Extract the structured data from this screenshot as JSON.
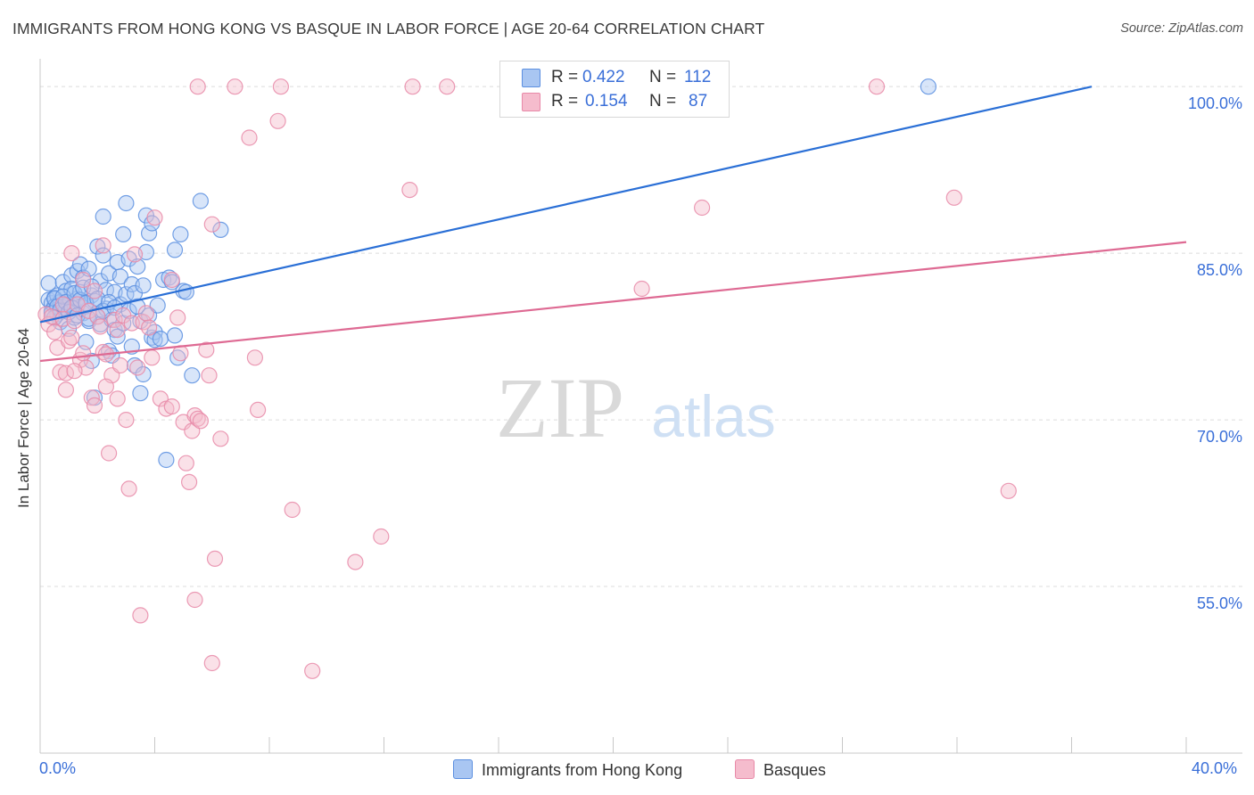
{
  "chart_data": {
    "type": "scatter",
    "title": "IMMIGRANTS FROM HONG KONG VS BASQUE IN LABOR FORCE | AGE 20-64 CORRELATION CHART",
    "source": "Source: ZipAtlas.com",
    "xlabel": "",
    "ylabel": "In Labor Force | Age 20-64",
    "xlim": [
      0,
      40
    ],
    "ylim": [
      40,
      102.5
    ],
    "x_tick_labels": {
      "left": "0.0%",
      "right": "40.0%"
    },
    "y_ticks": [
      {
        "value": 100,
        "label": "100.0%"
      },
      {
        "value": 85,
        "label": "85.0%"
      },
      {
        "value": 70,
        "label": "70.0%"
      },
      {
        "value": 55,
        "label": "55.0%"
      }
    ],
    "watermark": {
      "zip": "ZIP",
      "atlas": "atlas"
    },
    "legend": {
      "rows": [
        {
          "r_label": "R =",
          "r_value": "0.422",
          "n_label": "N =",
          "n_value": "112"
        },
        {
          "r_label": "R =",
          "r_value": "0.154",
          "n_label": "N =",
          "n_value": "87"
        }
      ]
    },
    "series": [
      {
        "name": "Immigrants from Hong Kong",
        "color": "#5b8fe0",
        "fill": "#a9c6f2",
        "trend": {
          "x": [
            0,
            36.7
          ],
          "y": [
            78.8,
            100.0
          ],
          "color": "#2a6fd6"
        },
        "points": [
          [
            0.3,
            82.3
          ],
          [
            0.3,
            80.8
          ],
          [
            0.4,
            80.5
          ],
          [
            0.4,
            79.8
          ],
          [
            0.5,
            81.0
          ],
          [
            0.5,
            80.2
          ],
          [
            0.6,
            79.5
          ],
          [
            0.6,
            81.2
          ],
          [
            0.7,
            80.6
          ],
          [
            0.7,
            78.8
          ],
          [
            0.8,
            80.1
          ],
          [
            0.8,
            82.4
          ],
          [
            0.9,
            79.9
          ],
          [
            0.9,
            81.6
          ],
          [
            1.0,
            80.4
          ],
          [
            1.0,
            78.2
          ],
          [
            1.1,
            83.0
          ],
          [
            1.1,
            81.8
          ],
          [
            1.2,
            80.0
          ],
          [
            1.2,
            79.2
          ],
          [
            1.3,
            83.4
          ],
          [
            1.3,
            80.9
          ],
          [
            1.4,
            84.0
          ],
          [
            1.4,
            81.5
          ],
          [
            1.5,
            79.6
          ],
          [
            1.5,
            82.8
          ],
          [
            1.6,
            80.3
          ],
          [
            1.6,
            77.0
          ],
          [
            1.7,
            83.6
          ],
          [
            1.7,
            78.9
          ],
          [
            1.8,
            81.2
          ],
          [
            1.8,
            75.3
          ],
          [
            1.9,
            80.7
          ],
          [
            1.9,
            72.0
          ],
          [
            2.0,
            79.3
          ],
          [
            2.0,
            85.6
          ],
          [
            2.1,
            82.5
          ],
          [
            2.1,
            78.6
          ],
          [
            2.2,
            84.8
          ],
          [
            2.2,
            88.3
          ],
          [
            2.3,
            81.7
          ],
          [
            2.3,
            80.0
          ],
          [
            2.4,
            83.2
          ],
          [
            2.4,
            76.2
          ],
          [
            2.5,
            79.0
          ],
          [
            2.5,
            75.8
          ],
          [
            2.6,
            81.5
          ],
          [
            2.6,
            78.1
          ],
          [
            2.7,
            84.2
          ],
          [
            2.7,
            77.5
          ],
          [
            2.8,
            80.4
          ],
          [
            2.8,
            82.9
          ],
          [
            2.9,
            78.7
          ],
          [
            2.9,
            86.7
          ],
          [
            3.0,
            81.3
          ],
          [
            3.0,
            89.5
          ],
          [
            3.1,
            84.5
          ],
          [
            3.1,
            79.8
          ],
          [
            3.2,
            82.2
          ],
          [
            3.2,
            76.6
          ],
          [
            3.3,
            81.4
          ],
          [
            3.3,
            74.9
          ],
          [
            3.4,
            80.2
          ],
          [
            3.4,
            83.8
          ],
          [
            3.5,
            78.9
          ],
          [
            3.5,
            72.4
          ],
          [
            3.6,
            82.1
          ],
          [
            3.6,
            74.1
          ],
          [
            3.7,
            85.1
          ],
          [
            3.7,
            88.4
          ],
          [
            3.8,
            79.4
          ],
          [
            3.8,
            86.8
          ],
          [
            3.9,
            87.7
          ],
          [
            3.9,
            77.4
          ],
          [
            4.0,
            77.9
          ],
          [
            4.0,
            77.2
          ],
          [
            4.1,
            80.3
          ],
          [
            4.2,
            77.3
          ],
          [
            4.3,
            82.6
          ],
          [
            4.4,
            66.4
          ],
          [
            4.5,
            82.8
          ],
          [
            4.6,
            82.4
          ],
          [
            4.7,
            85.3
          ],
          [
            4.7,
            77.6
          ],
          [
            4.8,
            75.6
          ],
          [
            4.9,
            86.7
          ],
          [
            5.0,
            81.6
          ],
          [
            5.1,
            81.5
          ],
          [
            5.3,
            74.0
          ],
          [
            5.6,
            89.7
          ],
          [
            6.3,
            87.1
          ],
          [
            0.4,
            79.6
          ],
          [
            0.5,
            80.9
          ],
          [
            0.6,
            80.2
          ],
          [
            0.7,
            79.9
          ],
          [
            0.8,
            81.1
          ],
          [
            0.9,
            80.6
          ],
          [
            1.0,
            79.7
          ],
          [
            1.1,
            80.1
          ],
          [
            1.2,
            81.4
          ],
          [
            1.3,
            79.4
          ],
          [
            1.4,
            80.8
          ],
          [
            1.5,
            81.9
          ],
          [
            1.6,
            80.5
          ],
          [
            1.7,
            79.1
          ],
          [
            1.8,
            82.0
          ],
          [
            2.0,
            80.9
          ],
          [
            2.2,
            79.8
          ],
          [
            2.4,
            80.6
          ],
          [
            2.6,
            80.1
          ],
          [
            31.0,
            100.0
          ],
          [
            0.5,
            79.2
          ]
        ]
      },
      {
        "name": "Basques",
        "color": "#e889a8",
        "fill": "#f5bccd",
        "trend": {
          "x": [
            0,
            40
          ],
          "y": [
            75.3,
            86.0
          ],
          "color": "#de6a93"
        },
        "points": [
          [
            0.2,
            79.5
          ],
          [
            0.3,
            78.6
          ],
          [
            0.4,
            79.3
          ],
          [
            0.5,
            77.9
          ],
          [
            0.6,
            76.5
          ],
          [
            0.7,
            74.3
          ],
          [
            0.8,
            79.1
          ],
          [
            0.9,
            74.2
          ],
          [
            1.0,
            77.1
          ],
          [
            1.1,
            77.4
          ],
          [
            1.2,
            78.9
          ],
          [
            1.3,
            80.4
          ],
          [
            1.4,
            75.4
          ],
          [
            1.5,
            76.0
          ],
          [
            1.6,
            74.7
          ],
          [
            1.7,
            79.8
          ],
          [
            1.8,
            72.0
          ],
          [
            1.9,
            81.6
          ],
          [
            2.0,
            79.3
          ],
          [
            2.1,
            78.4
          ],
          [
            2.2,
            76.1
          ],
          [
            2.3,
            75.9
          ],
          [
            2.4,
            67.0
          ],
          [
            2.5,
            74.0
          ],
          [
            2.6,
            79.0
          ],
          [
            2.7,
            71.9
          ],
          [
            2.8,
            74.9
          ],
          [
            2.9,
            79.4
          ],
          [
            3.0,
            70.0
          ],
          [
            3.1,
            63.8
          ],
          [
            3.2,
            78.7
          ],
          [
            3.3,
            84.9
          ],
          [
            3.4,
            74.7
          ],
          [
            3.5,
            52.4
          ],
          [
            3.6,
            78.8
          ],
          [
            3.7,
            79.6
          ],
          [
            3.8,
            78.3
          ],
          [
            4.0,
            88.2
          ],
          [
            4.2,
            71.9
          ],
          [
            4.4,
            71.0
          ],
          [
            4.6,
            71.2
          ],
          [
            4.8,
            79.2
          ],
          [
            4.9,
            76.0
          ],
          [
            5.0,
            69.8
          ],
          [
            5.1,
            66.1
          ],
          [
            5.2,
            64.4
          ],
          [
            5.3,
            69.0
          ],
          [
            5.4,
            70.4
          ],
          [
            5.5,
            70.1
          ],
          [
            5.6,
            69.9
          ],
          [
            5.8,
            76.3
          ],
          [
            5.9,
            74.0
          ],
          [
            6.0,
            87.6
          ],
          [
            6.1,
            57.5
          ],
          [
            6.3,
            68.3
          ],
          [
            7.3,
            95.4
          ],
          [
            7.5,
            75.6
          ],
          [
            7.6,
            70.9
          ],
          [
            8.3,
            96.9
          ],
          [
            8.8,
            61.9
          ],
          [
            9.5,
            47.4
          ],
          [
            11.0,
            57.2
          ],
          [
            11.9,
            59.5
          ],
          [
            12.9,
            90.7
          ],
          [
            21.0,
            81.8
          ],
          [
            23.1,
            89.1
          ],
          [
            31.9,
            90.0
          ],
          [
            33.8,
            63.6
          ],
          [
            5.5,
            100.0
          ],
          [
            6.8,
            100.0
          ],
          [
            8.4,
            100.0
          ],
          [
            13.0,
            100.0
          ],
          [
            14.2,
            100.0
          ],
          [
            29.2,
            100.0
          ],
          [
            6.0,
            48.1
          ],
          [
            5.4,
            53.8
          ],
          [
            1.1,
            85.0
          ],
          [
            2.2,
            85.7
          ],
          [
            0.9,
            72.7
          ],
          [
            1.5,
            82.6
          ],
          [
            2.7,
            78.1
          ],
          [
            3.9,
            75.6
          ],
          [
            4.6,
            82.6
          ],
          [
            1.2,
            74.4
          ],
          [
            2.3,
            73.0
          ],
          [
            0.8,
            80.4
          ],
          [
            1.9,
            71.3
          ]
        ]
      }
    ]
  }
}
